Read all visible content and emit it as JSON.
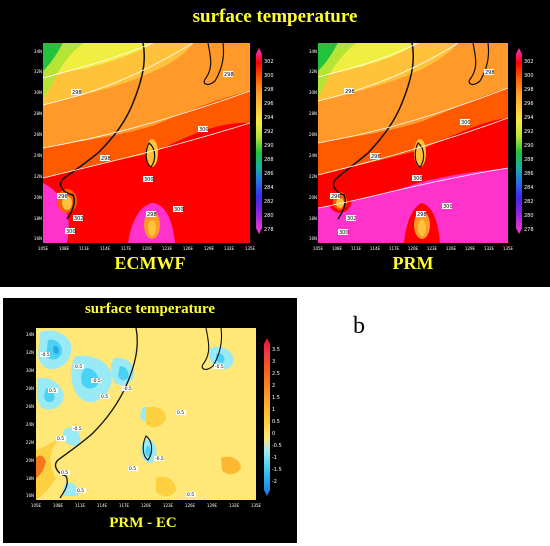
{
  "top_panel": {
    "title": "surface temperature",
    "left_label": "ECMWF",
    "right_label": "PRM",
    "colorbar_ticks": [
      "302",
      "300",
      "298",
      "296",
      "294",
      "292",
      "290",
      "288",
      "286",
      "284",
      "282",
      "280",
      "278"
    ],
    "colorbar_colors": [
      "#ff33cc",
      "#ff0000",
      "#ff5a00",
      "#ff9a2a",
      "#ffc23a",
      "#f0ee40",
      "#b6e436",
      "#22c23a",
      "#1ab0a0",
      "#2a6ee8",
      "#3a2cf0",
      "#8a22e0",
      "#c02ad8",
      "#ff3ad0"
    ],
    "lat_labels": [
      "34N",
      "32N",
      "30N",
      "28N",
      "26N",
      "24N",
      "22N",
      "20N",
      "18N",
      "16N"
    ],
    "lon_labels": [
      "105E",
      "108E",
      "111E",
      "114E",
      "117E",
      "120E",
      "123E",
      "126E",
      "129E",
      "132E",
      "135E"
    ],
    "contour_labels_left": [
      "298",
      "300",
      "298",
      "298",
      "300",
      "296",
      "298",
      "300",
      "302",
      "300"
    ],
    "contour_labels_right": [
      "298",
      "300",
      "298",
      "298",
      "300",
      "296",
      "298",
      "300",
      "302",
      "300"
    ]
  },
  "bottom_panel": {
    "title": "surface temperature",
    "label": "PRM - EC",
    "colorbar_ticks": [
      "3.5",
      "3",
      "2.5",
      "2",
      "1.5",
      "1",
      "0.5",
      "0",
      "-0.5",
      "-1",
      "-1.5",
      "-2"
    ],
    "colorbar_colors": [
      "#e8142a",
      "#f0364a",
      "#f25a1e",
      "#f5781e",
      "#f89a28",
      "#fbb830",
      "#fdd040",
      "#ffe878",
      "#9aeaf6",
      "#4ad2f4",
      "#27a8e8",
      "#1f6ee0"
    ],
    "lat_labels": [
      "34N",
      "32N",
      "30N",
      "28N",
      "26N",
      "24N",
      "22N",
      "20N",
      "18N",
      "16N"
    ],
    "lon_labels": [
      "105E",
      "108E",
      "111E",
      "114E",
      "117E",
      "120E",
      "123E",
      "126E",
      "129E",
      "132E",
      "135E"
    ],
    "contour_labels": [
      "-0.5",
      "0.5",
      "-0.5",
      "0.5",
      "-0.5",
      "0.5",
      "-0.5",
      "0.5",
      "0.5",
      "-0.5",
      "0.5",
      "0.5",
      "0.5",
      "-0.5",
      "0.5"
    ]
  },
  "figure_letter": "b"
}
